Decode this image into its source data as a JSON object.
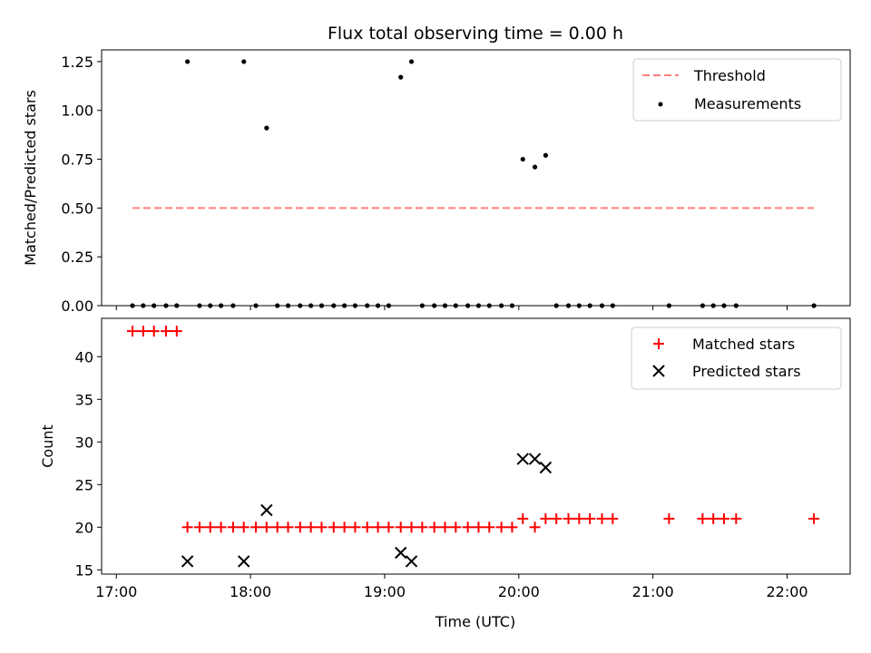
{
  "chart_data": {
    "title": "Flux total observing time = 0.00 h",
    "xlabel": "Time (UTC)",
    "xticks": [
      "17:00",
      "18:00",
      "19:00",
      "20:00",
      "21:00",
      "22:00"
    ],
    "xlim_hours": [
      16.89,
      22.47
    ],
    "panels": [
      {
        "type": "scatter",
        "ylabel": "Matched/Predicted stars",
        "ylim": [
          0,
          1.31
        ],
        "yticks": [
          "0.00",
          "0.25",
          "0.50",
          "0.75",
          "1.00",
          "1.25"
        ],
        "threshold": {
          "name": "Threshold",
          "value": 0.5,
          "x_range_hours": [
            17.12,
            22.2
          ],
          "color": "#ff8080"
        },
        "series": [
          {
            "name": "Measurements",
            "color": "#000000",
            "marker": "dot",
            "x_hours": [
              17.12,
              17.2,
              17.28,
              17.37,
              17.45,
              17.53,
              17.62,
              17.7,
              17.78,
              17.87,
              17.95,
              18.04,
              18.12,
              18.2,
              18.28,
              18.37,
              18.45,
              18.53,
              18.62,
              18.7,
              18.78,
              18.87,
              18.95,
              19.03,
              19.12,
              19.2,
              19.28,
              19.37,
              19.45,
              19.53,
              19.62,
              19.7,
              19.78,
              19.87,
              19.95,
              20.03,
              20.12,
              20.2,
              20.28,
              20.37,
              20.45,
              20.53,
              20.62,
              20.7,
              21.12,
              21.37,
              21.45,
              21.53,
              21.62,
              22.2
            ],
            "y": [
              0,
              0,
              0,
              0,
              0,
              1.25,
              0,
              0,
              0,
              0,
              1.25,
              0,
              0.91,
              0,
              0,
              0,
              0,
              0,
              0,
              0,
              0,
              0,
              0,
              0,
              1.17,
              1.25,
              0,
              0,
              0,
              0,
              0,
              0,
              0,
              0,
              0,
              0.75,
              0.71,
              0.77,
              0,
              0,
              0,
              0,
              0,
              0,
              0,
              0,
              0,
              0,
              0,
              0
            ]
          }
        ],
        "legend": {
          "placement": "upper right",
          "entries": [
            "Threshold",
            "Measurements"
          ]
        }
      },
      {
        "type": "scatter",
        "ylabel": "Count",
        "ylim": [
          14.5,
          44.5
        ],
        "yticks": [
          "15",
          "20",
          "25",
          "30",
          "35",
          "40"
        ],
        "series": [
          {
            "name": "Matched stars",
            "color": "#ff0000",
            "marker": "plus",
            "x_hours": [
              17.12,
              17.2,
              17.28,
              17.37,
              17.45,
              17.53,
              17.62,
              17.7,
              17.78,
              17.87,
              17.95,
              18.04,
              18.12,
              18.2,
              18.28,
              18.37,
              18.45,
              18.53,
              18.62,
              18.7,
              18.78,
              18.87,
              18.95,
              19.03,
              19.12,
              19.2,
              19.28,
              19.37,
              19.45,
              19.53,
              19.62,
              19.7,
              19.78,
              19.87,
              19.95,
              20.03,
              20.12,
              20.2,
              20.28,
              20.37,
              20.45,
              20.53,
              20.62,
              20.7,
              21.12,
              21.37,
              21.45,
              21.53,
              21.62,
              22.2
            ],
            "y": [
              43,
              43,
              43,
              43,
              43,
              20,
              20,
              20,
              20,
              20,
              20,
              20,
              20,
              20,
              20,
              20,
              20,
              20,
              20,
              20,
              20,
              20,
              20,
              20,
              20,
              20,
              20,
              20,
              20,
              20,
              20,
              20,
              20,
              20,
              20,
              21,
              20,
              21,
              21,
              21,
              21,
              21,
              21,
              21,
              21,
              21,
              21,
              21,
              21,
              21
            ]
          },
          {
            "name": "Predicted stars",
            "color": "#000000",
            "marker": "x",
            "x_hours": [
              17.53,
              17.95,
              18.12,
              19.12,
              19.2,
              20.03,
              20.12,
              20.2
            ],
            "y": [
              16,
              16,
              22,
              17,
              16,
              28,
              28,
              27
            ]
          }
        ],
        "legend": {
          "placement": "upper right",
          "entries": [
            "Matched stars",
            "Predicted stars"
          ]
        }
      }
    ]
  }
}
